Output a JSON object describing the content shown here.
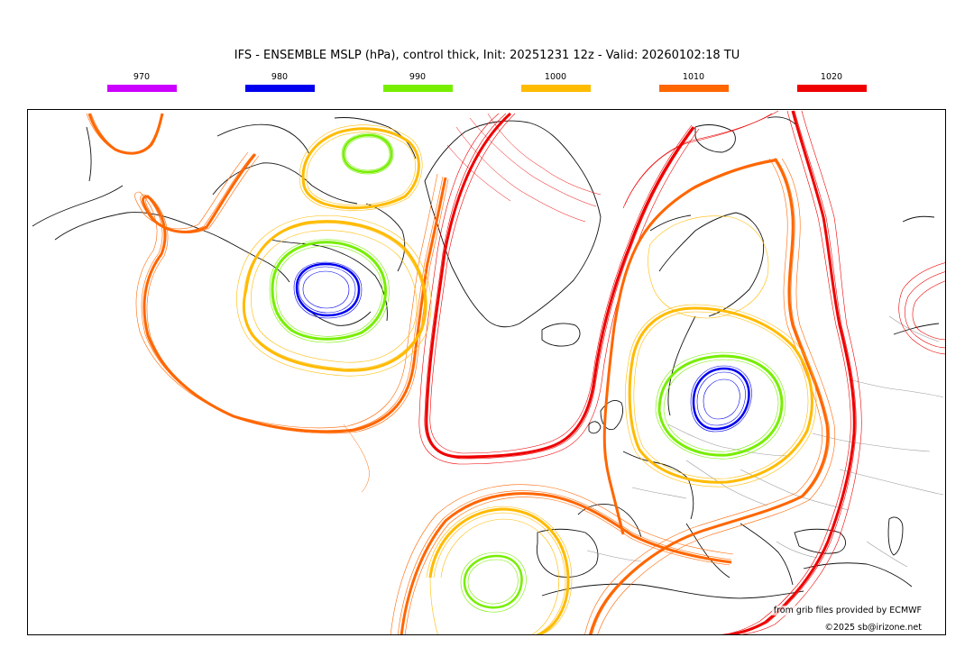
{
  "header": {
    "title": "IFS - ENSEMBLE MSLP (hPa), control thick, Init: 20251231 12z - Valid: 20260102:18 TU"
  },
  "legend": [
    {
      "label": "970",
      "color": "#cc00ff"
    },
    {
      "label": "980",
      "color": "#0000ee"
    },
    {
      "label": "990",
      "color": "#77ee00"
    },
    {
      "label": "1000",
      "color": "#ffbb00"
    },
    {
      "label": "1010",
      "color": "#ff6600"
    },
    {
      "label": "1020",
      "color": "#ee0000"
    }
  ],
  "credits": {
    "provider": "from grib files provided by ECMWF",
    "copyright": "©2025 sb@irizone.net"
  }
}
